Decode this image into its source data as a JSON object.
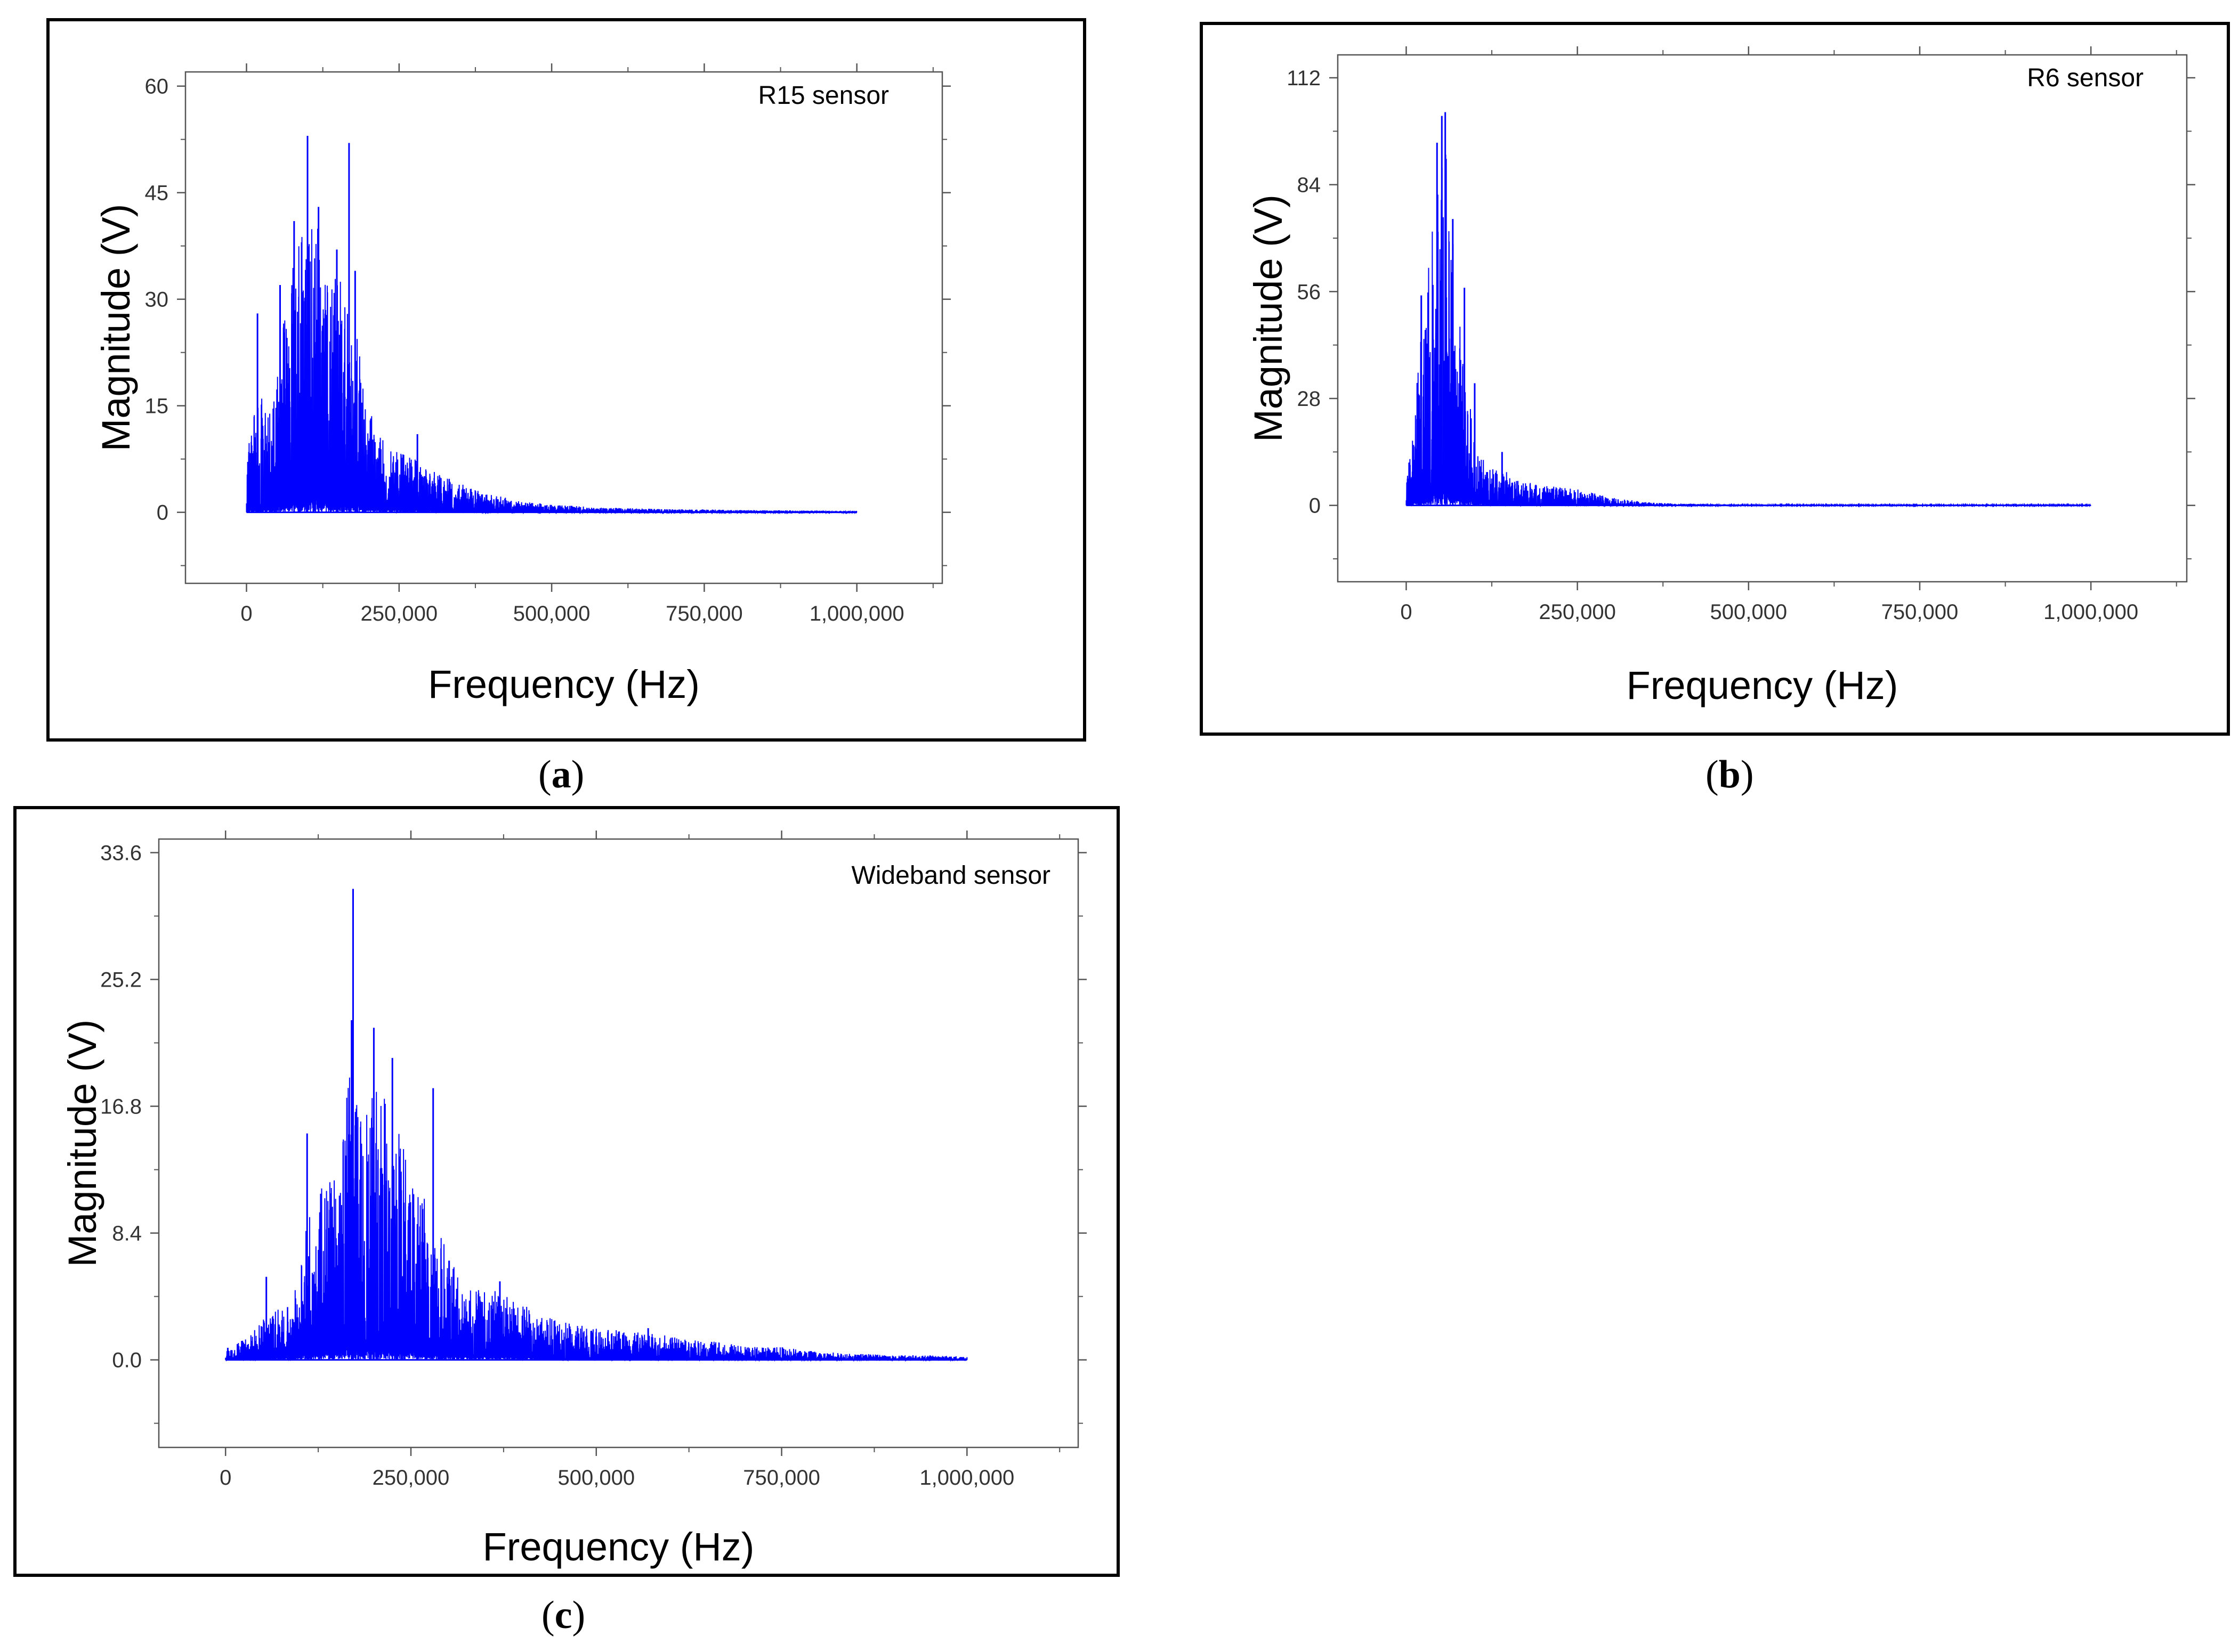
{
  "figure": {
    "panel_labels": [
      {
        "open": "(",
        "letter": "a",
        "close": ")"
      },
      {
        "open": "(",
        "letter": "b",
        "close": ")"
      },
      {
        "open": "(",
        "letter": "c",
        "close": ")"
      }
    ]
  },
  "chart_data": [
    {
      "type": "line",
      "sensor_label": "R15 sensor",
      "xlabel": "Frequency (Hz)",
      "ylabel": "Magnitude (V)",
      "xlim": [
        -100000,
        1140000
      ],
      "ylim": [
        -10,
        62
      ],
      "xticks": [
        0,
        250000,
        500000,
        750000,
        1000000
      ],
      "xtick_labels": [
        "0",
        "250,000",
        "500,000",
        "750,000",
        "1,000,000"
      ],
      "yticks": [
        0,
        15,
        30,
        45,
        60
      ],
      "ytick_labels": [
        "0",
        "15",
        "30",
        "45",
        "60"
      ],
      "color": "#0000ff",
      "spectrum_x": [
        0,
        20000,
        40000,
        60000,
        80000,
        100000,
        120000,
        140000,
        160000,
        180000,
        200000,
        220000,
        250000,
        280000,
        320000,
        360000,
        400000,
        450000,
        500000,
        550000,
        600000,
        650000,
        700000,
        750000,
        800000,
        850000,
        900000,
        950000,
        1000000
      ],
      "spectrum_envelope": [
        8,
        16,
        13,
        25,
        36,
        42,
        40,
        33,
        30,
        24,
        14,
        10,
        8,
        7,
        5,
        3.5,
        2.5,
        1.5,
        1.0,
        0.8,
        0.6,
        0.5,
        0.4,
        0.4,
        0.3,
        0.3,
        0.25,
        0.2,
        0.2
      ],
      "peaks": [
        {
          "x": 4000,
          "y": 8.5
        },
        {
          "x": 18000,
          "y": 28
        },
        {
          "x": 55000,
          "y": 32
        },
        {
          "x": 78000,
          "y": 41
        },
        {
          "x": 100000,
          "y": 53
        },
        {
          "x": 118000,
          "y": 43
        },
        {
          "x": 148000,
          "y": 37
        },
        {
          "x": 168000,
          "y": 52
        },
        {
          "x": 178000,
          "y": 34
        },
        {
          "x": 280000,
          "y": 11
        }
      ]
    },
    {
      "type": "line",
      "sensor_label": "R6 sensor",
      "xlabel": "Frequency (Hz)",
      "ylabel": "Magnitude (V)",
      "xlim": [
        -100000,
        1140000
      ],
      "ylim": [
        -20,
        118
      ],
      "xticks": [
        0,
        250000,
        500000,
        750000,
        1000000
      ],
      "xtick_labels": [
        "0",
        "250,000",
        "500,000",
        "750,000",
        "1,000,000"
      ],
      "yticks": [
        0,
        28,
        56,
        84,
        112
      ],
      "ytick_labels": [
        "0",
        "28",
        "56",
        "84",
        "112"
      ],
      "color": "#0000ff",
      "spectrum_x": [
        0,
        10000,
        20000,
        30000,
        40000,
        50000,
        60000,
        70000,
        80000,
        90000,
        100000,
        120000,
        140000,
        170000,
        200000,
        250000,
        300000,
        350000,
        400000,
        450000,
        500000,
        600000,
        700000,
        800000,
        900000,
        1000000
      ],
      "spectrum_envelope": [
        6,
        20,
        40,
        55,
        75,
        90,
        95,
        60,
        50,
        30,
        18,
        10,
        9,
        6,
        5,
        4,
        2,
        0.8,
        0.4,
        0.3,
        0.2,
        0.2,
        0.2,
        0.2,
        0.2,
        0.2
      ],
      "peaks": [
        {
          "x": 2000,
          "y": 7
        },
        {
          "x": 22000,
          "y": 55
        },
        {
          "x": 45000,
          "y": 95
        },
        {
          "x": 52000,
          "y": 102
        },
        {
          "x": 57000,
          "y": 103
        },
        {
          "x": 68000,
          "y": 75
        },
        {
          "x": 85000,
          "y": 57
        },
        {
          "x": 100000,
          "y": 32
        },
        {
          "x": 140000,
          "y": 14
        }
      ]
    },
    {
      "type": "line",
      "sensor_label": "Wideband sensor",
      "xlabel": "Frequency (Hz)",
      "ylabel": "Magnitude (V)",
      "xlim": [
        -90000,
        1150000
      ],
      "ylim": [
        -5.8,
        34.5
      ],
      "xticks": [
        0,
        250000,
        500000,
        750000,
        1000000
      ],
      "xtick_labels": [
        "0",
        "250,000",
        "500,000",
        "750,000",
        "1,000,000"
      ],
      "yticks": [
        0,
        8.4,
        16.8,
        25.2,
        33.6
      ],
      "ytick_labels": [
        "0.0",
        "8.4",
        "16.8",
        "25.2",
        "33.6"
      ],
      "color": "#0000ff",
      "spectrum_x": [
        0,
        30000,
        60000,
        90000,
        110000,
        130000,
        150000,
        170000,
        190000,
        210000,
        230000,
        250000,
        270000,
        290000,
        320000,
        360000,
        400000,
        450000,
        500000,
        550000,
        600000,
        650000,
        700000,
        750000,
        800000,
        850000,
        900000,
        950000,
        1000000
      ],
      "spectrum_envelope": [
        0.5,
        1.5,
        3,
        3.5,
        9,
        11,
        12,
        19,
        18,
        17,
        15,
        12,
        10,
        8,
        5,
        4.5,
        3.5,
        2.5,
        2,
        1.8,
        1.5,
        1.2,
        0.9,
        0.8,
        0.5,
        0.4,
        0.3,
        0.3,
        0.2
      ],
      "peaks": [
        {
          "x": 3000,
          "y": 0.8
        },
        {
          "x": 55000,
          "y": 5.5
        },
        {
          "x": 110000,
          "y": 15
        },
        {
          "x": 170000,
          "y": 22.5
        },
        {
          "x": 172000,
          "y": 31.2
        },
        {
          "x": 200000,
          "y": 22
        },
        {
          "x": 225000,
          "y": 20
        },
        {
          "x": 280000,
          "y": 18
        },
        {
          "x": 370000,
          "y": 5.2
        },
        {
          "x": 570000,
          "y": 2.1
        }
      ]
    }
  ]
}
